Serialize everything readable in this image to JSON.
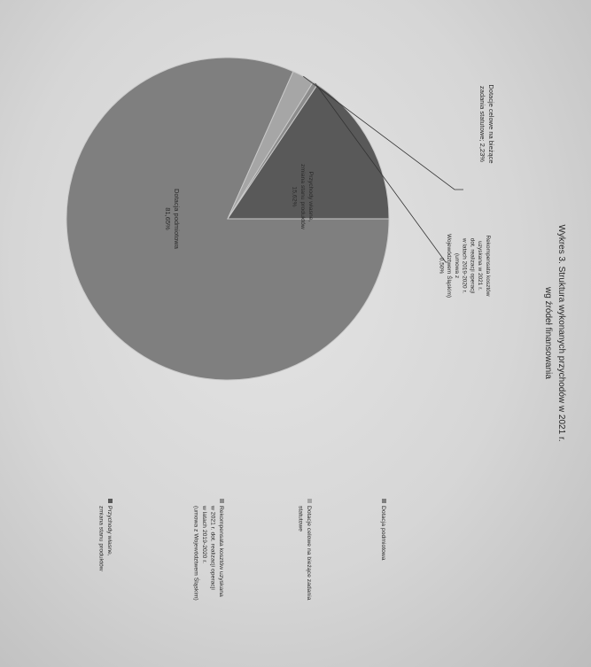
{
  "chart_data": {
    "type": "pie",
    "title": "Wykres 3. Struktura wykonanych przychodów w 2021 r.",
    "subtitle": "wg źródeł finansowania",
    "legend_position": "right",
    "slices": [
      {
        "legend": "Dotacja podmiotowa",
        "label_lines": [
          "Dotacja podmiotowa",
          "81,65%"
        ],
        "value": 81.65,
        "color": "#7f7f7f"
      },
      {
        "legend": "Dotacje celowe na bieżące zadania statutowe",
        "label_lines": [
          "Dotacje celowe na bieżące",
          "zadania statutowe; 2,23%"
        ],
        "value": 2.23,
        "color": "#a6a6a6"
      },
      {
        "legend": "Rekompensata kosztów uzyskana w 2021 r. dot. realizacji operacji w latach 2019-2020 r. (umowa z Województwem Śląskim)",
        "label_lines": [
          "Rekompensata kosztów",
          "uzyskana w 2021 r.",
          "dot. realizacji operacji",
          "w latach 2019-2020 r.",
          "(umowa z",
          "Województwem Śląskim)",
          "0,50%"
        ],
        "value": 0.5,
        "color": "#8c8c8c"
      },
      {
        "legend": "Przychody własne, zmiana stanu produktów",
        "label_lines": [
          "Przychody własne,",
          "zmiana stanu produktów",
          "15,62%"
        ],
        "value": 15.62,
        "color": "#595959"
      }
    ],
    "legend_entries": [
      [
        "Dotacja podmiotowa"
      ],
      [
        "Dotacje celowe na bieżące zadania",
        "statutowe"
      ],
      [
        "Rekompensata kosztów uzyskana",
        "w 2021 r. dot. realizacji operacji",
        "w latach 2019-2020 r.",
        "(umowa z Województwem Śląskim)"
      ],
      [
        "Przychody własne,",
        "zmiana stanu produktów"
      ]
    ]
  }
}
